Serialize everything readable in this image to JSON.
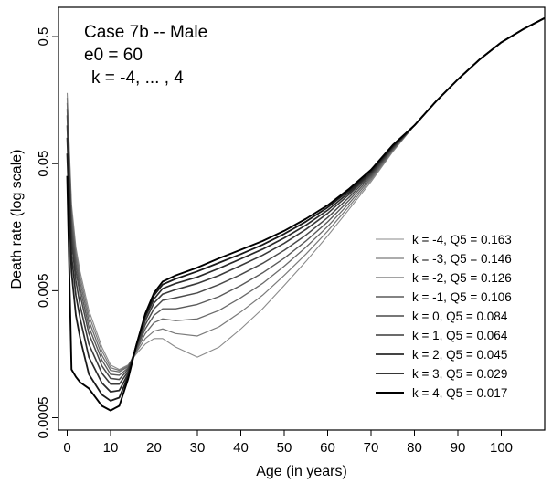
{
  "chart_data": {
    "type": "line",
    "title": "",
    "annotations": [
      "Case 7b -- Male",
      "e0 = 60",
      "k = -4, ... , 4"
    ],
    "xlabel": "Age (in years)",
    "ylabel": "Death rate (log scale)",
    "xlim": [
      -2,
      110
    ],
    "ylim": [
      0.0004,
      0.85
    ],
    "y_scale": "log",
    "grid": false,
    "legend_position": "right",
    "x_ticks": [
      0,
      10,
      20,
      30,
      40,
      50,
      60,
      70,
      80,
      90,
      100
    ],
    "x_tick_labels": [
      "0",
      "10",
      "20",
      "30",
      "40",
      "50",
      "60",
      "70",
      "80",
      "90",
      "100"
    ],
    "y_ticks": [
      0.0005,
      0.005,
      0.05,
      0.5
    ],
    "y_tick_labels": [
      "0.0005",
      "0.005",
      "0.05",
      "0.5"
    ],
    "x": [
      0,
      1,
      2,
      3,
      5,
      8,
      10,
      12,
      14,
      16,
      18,
      20,
      22,
      25,
      30,
      35,
      40,
      45,
      50,
      55,
      60,
      65,
      70,
      75,
      80,
      85,
      90,
      95,
      100,
      105,
      110
    ],
    "series": [
      {
        "label": "k = -4, Q5 = 0.163",
        "color": "#8a8a8a",
        "width": 1.1,
        "values": [
          0.18,
          0.024,
          0.011,
          0.007,
          0.0035,
          0.0018,
          0.0013,
          0.0012,
          0.0013,
          0.0016,
          0.0019,
          0.0021,
          0.0021,
          0.0018,
          0.0015,
          0.0018,
          0.0025,
          0.0036,
          0.0055,
          0.0085,
          0.0135,
          0.022,
          0.036,
          0.062,
          0.1,
          0.155,
          0.23,
          0.33,
          0.45,
          0.57,
          0.7
        ]
      },
      {
        "label": "k = -3, Q5 = 0.146",
        "color": "#7a7a7a",
        "width": 1.2,
        "values": [
          0.165,
          0.022,
          0.0101,
          0.0064,
          0.0032,
          0.00168,
          0.00124,
          0.00118,
          0.00128,
          0.00165,
          0.0021,
          0.0024,
          0.0025,
          0.0023,
          0.0022,
          0.0026,
          0.0034,
          0.0046,
          0.0066,
          0.0097,
          0.0147,
          0.0232,
          0.0372,
          0.063,
          0.1,
          0.155,
          0.23,
          0.33,
          0.45,
          0.57,
          0.7
        ]
      },
      {
        "label": "k = -2, Q5 = 0.126",
        "color": "#6a6a6a",
        "width": 1.3,
        "values": [
          0.15,
          0.02,
          0.0092,
          0.0058,
          0.0029,
          0.00155,
          0.00118,
          0.00115,
          0.00126,
          0.0017,
          0.0023,
          0.0028,
          0.003,
          0.0029,
          0.003,
          0.0035,
          0.0044,
          0.0057,
          0.0078,
          0.011,
          0.016,
          0.0245,
          0.0384,
          0.064,
          0.1,
          0.155,
          0.23,
          0.33,
          0.45,
          0.57,
          0.7
        ]
      },
      {
        "label": "k = -1, Q5 = 0.106",
        "color": "#5a5a5a",
        "width": 1.4,
        "values": [
          0.135,
          0.0175,
          0.0082,
          0.0052,
          0.0026,
          0.00142,
          0.0011,
          0.00108,
          0.00123,
          0.00175,
          0.0025,
          0.0032,
          0.0036,
          0.0036,
          0.0039,
          0.0045,
          0.0055,
          0.0069,
          0.009,
          0.0123,
          0.0174,
          0.0259,
          0.0396,
          0.065,
          0.1,
          0.155,
          0.23,
          0.33,
          0.45,
          0.57,
          0.7
        ]
      },
      {
        "label": "k = 0, Q5 = 0.084",
        "color": "#4a4a4a",
        "width": 1.5,
        "values": [
          0.12,
          0.015,
          0.0072,
          0.0046,
          0.0023,
          0.00128,
          0.00102,
          0.001,
          0.0012,
          0.0018,
          0.0027,
          0.0036,
          0.0042,
          0.0044,
          0.0048,
          0.0056,
          0.0067,
          0.0082,
          0.0104,
          0.0137,
          0.0188,
          0.0273,
          0.0408,
          0.066,
          0.1,
          0.155,
          0.23,
          0.33,
          0.45,
          0.57,
          0.7
        ]
      },
      {
        "label": "k = 1, Q5 = 0.064",
        "color": "#3a3a3a",
        "width": 1.6,
        "values": [
          0.1,
          0.0125,
          0.006,
          0.0038,
          0.0019,
          0.00112,
          0.00092,
          0.00092,
          0.00115,
          0.00185,
          0.0029,
          0.004,
          0.0047,
          0.0051,
          0.0057,
          0.0066,
          0.0079,
          0.0095,
          0.0118,
          0.0152,
          0.0203,
          0.0287,
          0.042,
          0.067,
          0.1,
          0.155,
          0.23,
          0.33,
          0.45,
          0.57,
          0.7
        ]
      },
      {
        "label": "k = 2, Q5 = 0.045",
        "color": "#2a2a2a",
        "width": 1.7,
        "values": [
          0.08,
          0.0095,
          0.0046,
          0.003,
          0.0015,
          0.00094,
          0.0008,
          0.00082,
          0.0011,
          0.0019,
          0.0031,
          0.0043,
          0.0052,
          0.0057,
          0.0064,
          0.0075,
          0.0089,
          0.0106,
          0.013,
          0.0164,
          0.0215,
          0.0298,
          0.043,
          0.068,
          0.1,
          0.155,
          0.23,
          0.33,
          0.45,
          0.57,
          0.7
        ]
      },
      {
        "label": "k = 3, Q5 = 0.029",
        "color": "#1a1a1a",
        "width": 1.8,
        "values": [
          0.06,
          0.007,
          0.0032,
          0.0021,
          0.0011,
          0.00076,
          0.00068,
          0.00072,
          0.00105,
          0.0019,
          0.0032,
          0.0046,
          0.0056,
          0.0062,
          0.0071,
          0.0083,
          0.0097,
          0.0115,
          0.014,
          0.0175,
          0.0226,
          0.0309,
          0.044,
          0.069,
          0.1,
          0.155,
          0.23,
          0.33,
          0.45,
          0.57,
          0.7
        ]
      },
      {
        "label": "k = 4, Q5 = 0.017",
        "color": "#000000",
        "width": 1.9,
        "values": [
          0.04,
          0.0012,
          0.00105,
          0.00095,
          0.00085,
          0.00062,
          0.00057,
          0.00062,
          0.001,
          0.0019,
          0.0033,
          0.0048,
          0.0059,
          0.0066,
          0.0076,
          0.009,
          0.0105,
          0.0123,
          0.0148,
          0.0184,
          0.0235,
          0.0318,
          0.0448,
          0.07,
          0.1,
          0.155,
          0.23,
          0.33,
          0.45,
          0.57,
          0.7
        ]
      }
    ]
  }
}
